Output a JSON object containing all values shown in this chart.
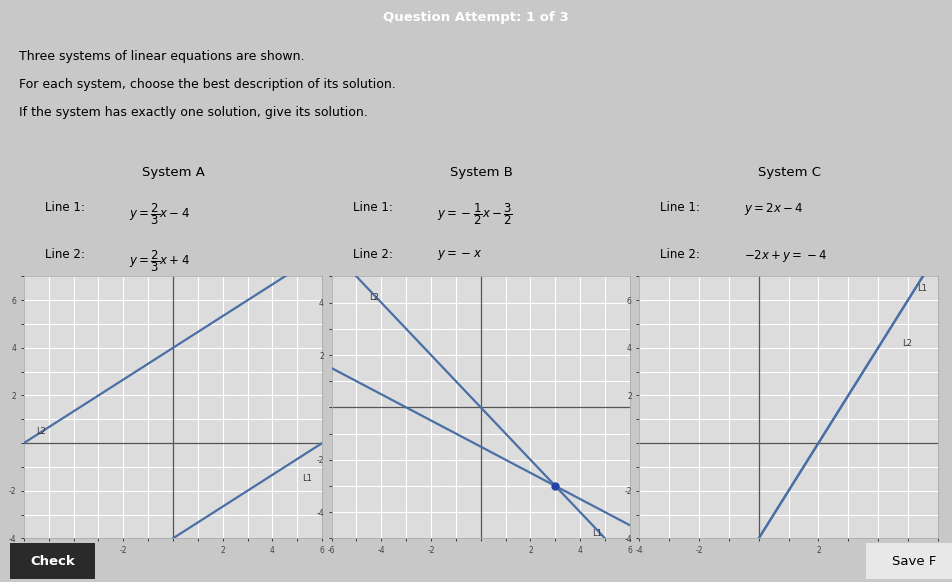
{
  "bg_outer": "#c8c8c8",
  "bg_inner": "#f5f5f0",
  "graph_bg": "#dcdcdc",
  "grid_color": "#ffffff",
  "line_color": "#4a6fa5",
  "dot_color": "#2244aa",
  "header_bg": "#5aaa70",
  "header_text": "Question Attempt: 1 of 3",
  "instruction_lines": [
    "Three systems of linear equations are shown.",
    "For each system, choose the best description of its solution.",
    "If the system has exactly one solution, give its solution."
  ],
  "systems": [
    {
      "title": "System A",
      "line1_latex": "$y=\\dfrac{2}{3}x-4$",
      "line2_latex": "$y=\\dfrac{2}{3}x+4$",
      "line1_prefix": "Line 1: ",
      "line2_prefix": "Line 2: ",
      "line1_m": 0.6667,
      "line1_b": -4,
      "line2_m": 0.6667,
      "line2_b": 4,
      "xlim": [
        -6,
        6
      ],
      "ylim": [
        -4,
        7
      ],
      "L1_label": "L1",
      "L2_label": "L2",
      "L1_x": 5.2,
      "L1_y": -1.5,
      "L2_x": -5.5,
      "L2_y": 0.5,
      "intersection": null
    },
    {
      "title": "System B",
      "line1_latex": "$y=-\\dfrac{1}{2}x-\\dfrac{3}{2}$",
      "line2_latex": "$y=-x$",
      "line1_prefix": "Line 1: ",
      "line2_prefix": "Line 2: ",
      "line1_m": -0.5,
      "line1_b": -1.5,
      "line2_m": -1.0,
      "line2_b": 0,
      "xlim": [
        -6,
        6
      ],
      "ylim": [
        -5,
        5
      ],
      "L1_label": "L1",
      "L2_label": "L2",
      "L1_x": 4.5,
      "L1_y": -4.8,
      "L2_x": -4.5,
      "L2_y": 4.2,
      "intersection": [
        3,
        -3
      ]
    },
    {
      "title": "System C",
      "line1_latex": "$y=2x-4$",
      "line2_latex": "$-2x+y=-4$",
      "line1_prefix": "Line 1: ",
      "line2_prefix": "Line 2: ",
      "line1_m": 2,
      "line1_b": -4,
      "line2_m": 2,
      "line2_b": -4,
      "xlim": [
        -4,
        6
      ],
      "ylim": [
        -4,
        7
      ],
      "L1_label": "L1",
      "L2_label": "L2",
      "L1_x": 5.3,
      "L1_y": 6.5,
      "L2_x": 4.8,
      "L2_y": 4.2,
      "intersection": null
    }
  ],
  "check_btn": "Check",
  "save_btn": "Save F"
}
